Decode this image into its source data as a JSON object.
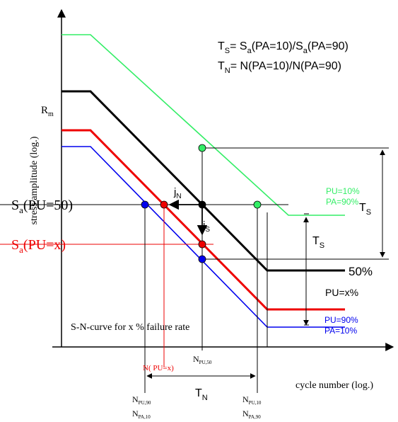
{
  "formulas": {
    "ts": {
      "main": "T",
      "main_sub": "S",
      "eq": "= S",
      "a1_sub": "a",
      "arg1": "(PA=10)/S",
      "a2_sub": "a",
      "arg2": "(PA=90)"
    },
    "tn": {
      "main": "T",
      "main_sub": "N",
      "eq": "= N(PA=10)/N(PA=90)"
    }
  },
  "axes": {
    "y_label": "stress amplitude  (log.)",
    "x_label": "cycle number  (log.)"
  },
  "labels": {
    "rm": {
      "main": "R",
      "sub": "m"
    },
    "sa50": {
      "main": "S",
      "sub": "a",
      "rest": "(PU=50)"
    },
    "sax": {
      "main": "S",
      "sub": "a",
      "rest": "(PU=x)"
    },
    "jn": {
      "main": "j",
      "sub": "N"
    },
    "js": {
      "main": "j",
      "sub": "S"
    },
    "ts_right": {
      "main": "T",
      "sub": "S"
    },
    "ts_mid": {
      "main": "T",
      "sub": "S"
    },
    "tn_bottom": {
      "main": "T",
      "sub": "N"
    },
    "pu10_line1": "PU=10%",
    "pu10_line2": "PA=90%",
    "p50": "50%",
    "pux": "PU=x%",
    "pu90_line1": "PU=90%",
    "pu90_line2": "PA=10%",
    "curve_caption": "S-N-curve for x % failure rate",
    "npu50": {
      "main": "N",
      "sub": "PU,50"
    },
    "npux": "N( PU=x)",
    "npu90": {
      "main": "N",
      "sub": "PU,90"
    },
    "npa10": {
      "main": "N",
      "sub": "PA,10"
    },
    "npu10": {
      "main": "N",
      "sub": "PU,10"
    },
    "npa90": {
      "main": "N",
      "sub": "PA,90"
    }
  },
  "colors": {
    "green": "#33ee66",
    "black": "#000000",
    "red": "#ee0000",
    "blue": "#0000ee"
  }
}
